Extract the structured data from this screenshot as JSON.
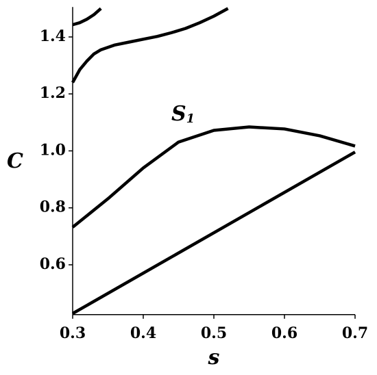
{
  "chart_data": {
    "type": "line",
    "x_label": "s",
    "y_label": "C",
    "annotation": {
      "text": "S",
      "subscript": "1"
    },
    "xlim": [
      0.3,
      0.7
    ],
    "ylim": [
      0.425,
      1.505
    ],
    "xticks": [
      0.3,
      0.4,
      0.5,
      0.6,
      0.7
    ],
    "yticks": [
      0.6,
      0.8,
      {
        "value": 1,
        "label": "1.0"
      },
      1.2,
      1.4
    ],
    "series": [
      {
        "color": "#000000",
        "x": [
          0.3,
          0.31,
          0.32,
          0.33,
          0.34
        ],
        "values": [
          1.443,
          1.45,
          1.462,
          1.478,
          1.5
        ]
      },
      {
        "color": "#000000",
        "x": [
          0.3,
          0.31,
          0.32,
          0.33,
          0.34,
          0.36,
          0.38,
          0.4,
          0.42,
          0.44,
          0.46,
          0.48,
          0.5,
          0.52
        ],
        "values": [
          1.24,
          1.285,
          1.315,
          1.34,
          1.355,
          1.372,
          1.382,
          1.392,
          1.402,
          1.415,
          1.43,
          1.45,
          1.473,
          1.5
        ]
      },
      {
        "color": "#000000",
        "x": [
          0.3,
          0.35,
          0.4,
          0.45,
          0.5,
          0.55,
          0.6,
          0.65,
          0.7
        ],
        "values": [
          0.732,
          0.832,
          0.94,
          1.031,
          1.072,
          1.084,
          1.077,
          1.053,
          1.017
        ]
      },
      {
        "color": "#000000",
        "x": [
          0.3,
          0.7
        ],
        "values": [
          0.429,
          0.996
        ]
      }
    ]
  }
}
